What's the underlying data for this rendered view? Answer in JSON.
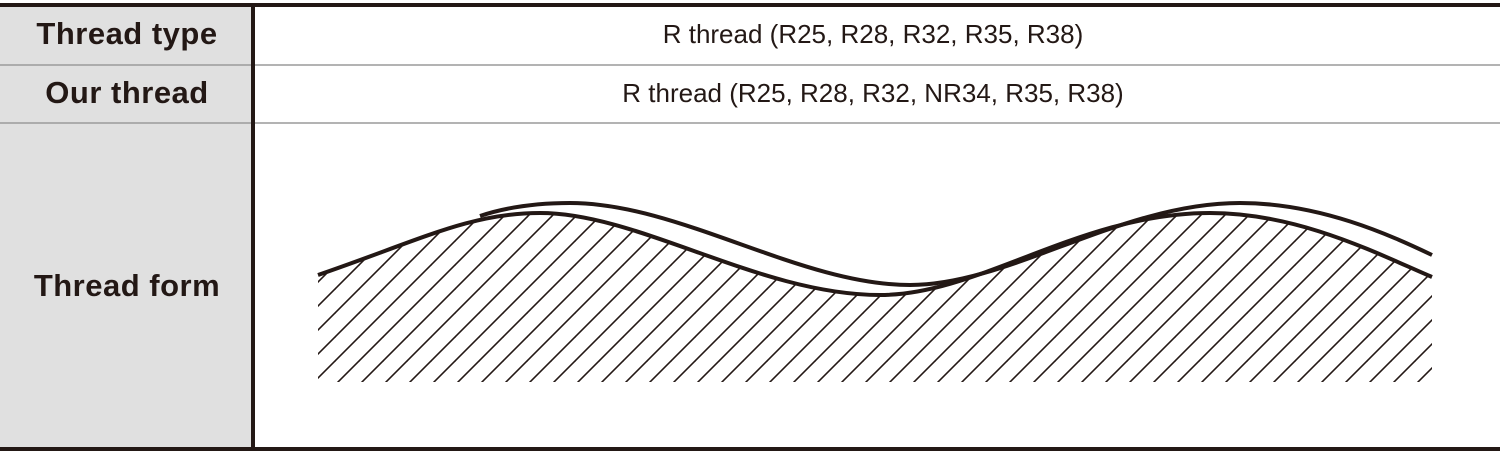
{
  "table": {
    "rows": [
      {
        "header": "Thread type",
        "value": "R thread (R25, R28, R32, R35, R38)"
      },
      {
        "header": "Our thread",
        "value": "R thread (R25, R28, R32,  NR34, R35, R38)"
      },
      {
        "header": "Thread form"
      }
    ]
  }
}
